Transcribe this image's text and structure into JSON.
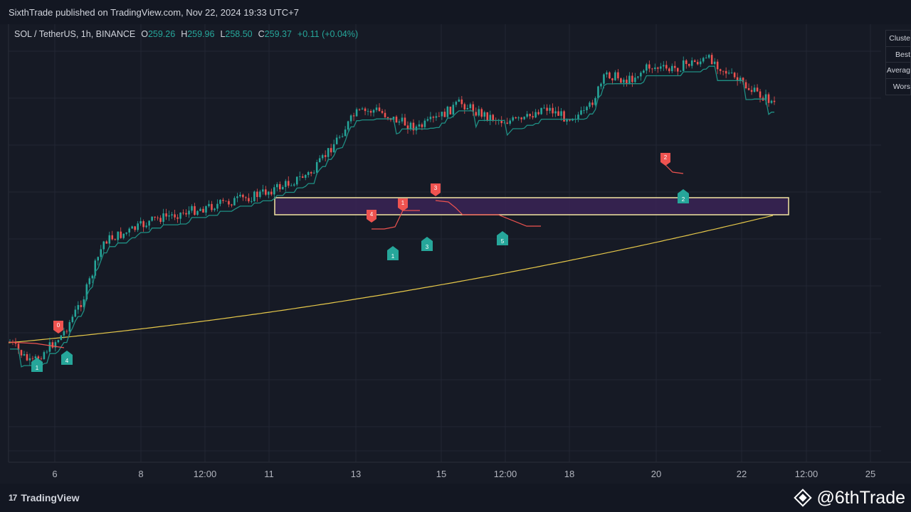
{
  "header": {
    "publish_line": "SixthTrade published on TradingView.com, Nov 22, 2024 19:33 UTC+7"
  },
  "legend": {
    "symbol": "SOL / TetherUS, 1h, BINANCE",
    "open_label": "O",
    "open": "259.26",
    "high_label": "H",
    "high": "259.96",
    "low_label": "L",
    "low": "258.50",
    "close_label": "C",
    "close": "259.37",
    "change": "+0.11 (+0.04%)"
  },
  "cluster_table": {
    "rows": [
      "Cluste",
      "Best",
      "Averag",
      "Wors"
    ]
  },
  "x_axis": {
    "labels": [
      "6",
      "8",
      "12:00",
      "11",
      "13",
      "15",
      "12:00",
      "18",
      "20",
      "22",
      "12:00",
      "25"
    ]
  },
  "signals": {
    "sell": [
      "0",
      "4",
      "1",
      "3",
      "2"
    ],
    "buy": [
      "1",
      "4",
      "1",
      "3",
      "5",
      "2"
    ]
  },
  "footer": {
    "brand": "TradingView",
    "brand_mark": "17",
    "watermark": "@6thTrade"
  },
  "colors": {
    "background": "#161a25",
    "up": "#26a69a",
    "down": "#ef5350",
    "trail_up": "#1f8f84",
    "trail_down": "#ef5350",
    "ema": "#e6c84a",
    "zone_fill": "#3a2456",
    "zone_border": "#f3e5a1"
  },
  "chart_data": {
    "type": "candlestick",
    "symbol": "SOL / TetherUS",
    "interval": "1h",
    "x_tick_labels": [
      "6",
      "8",
      "12:00",
      "11",
      "13",
      "15",
      "12:00",
      "18",
      "20",
      "22",
      "12:00",
      "25"
    ],
    "close_path": [
      {
        "t": 0,
        "v": 0.0
      },
      {
        "t": 2,
        "v": -0.3
      },
      {
        "t": 5,
        "v": 0.1
      },
      {
        "t": 7,
        "v": 0.6
      },
      {
        "t": 9,
        "v": 1.4
      },
      {
        "t": 11,
        "v": 1.5
      },
      {
        "t": 14,
        "v": 1.7
      },
      {
        "t": 17,
        "v": 1.8
      },
      {
        "t": 20,
        "v": 1.9
      },
      {
        "t": 23,
        "v": 2.0
      },
      {
        "t": 26,
        "v": 2.15
      },
      {
        "t": 29,
        "v": 2.35
      },
      {
        "t": 31,
        "v": 2.75
      },
      {
        "t": 33,
        "v": 3.15
      },
      {
        "t": 35,
        "v": 3.2
      },
      {
        "t": 37,
        "v": 3.05
      },
      {
        "t": 39,
        "v": 2.95
      },
      {
        "t": 41,
        "v": 3.1
      },
      {
        "t": 43,
        "v": 3.3
      },
      {
        "t": 45,
        "v": 3.15
      },
      {
        "t": 47,
        "v": 3.05
      },
      {
        "t": 49,
        "v": 3.05
      },
      {
        "t": 51,
        "v": 3.25
      },
      {
        "t": 53,
        "v": 3.1
      },
      {
        "t": 55,
        "v": 3.15
      },
      {
        "t": 57,
        "v": 3.7
      },
      {
        "t": 59,
        "v": 3.6
      },
      {
        "t": 61,
        "v": 3.8
      },
      {
        "t": 63,
        "v": 3.75
      },
      {
        "t": 65,
        "v": 3.85
      },
      {
        "t": 67,
        "v": 3.9
      },
      {
        "t": 69,
        "v": 3.65
      },
      {
        "t": 71,
        "v": 3.45
      },
      {
        "t": 73,
        "v": 3.3
      }
    ],
    "trendline_color": "#e6c84a",
    "zone_color": "#3a2456"
  }
}
